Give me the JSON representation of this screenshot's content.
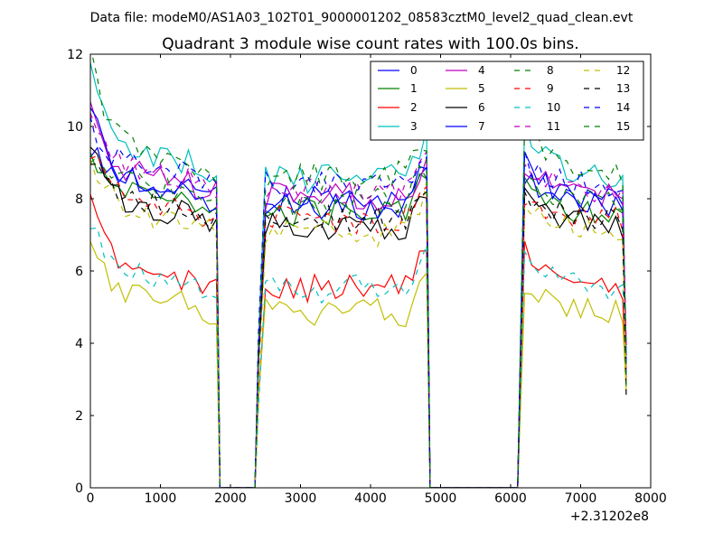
{
  "figure": {
    "suptitle": "Data file: modeM0/AS1A03_102T01_9000001202_08583cztM0_level2_quad_clean.evt"
  },
  "chart_data": {
    "type": "line",
    "title": "Quadrant 3 module wise count rates with 100.0s bins.",
    "xlabel": "",
    "ylabel": "",
    "xlim": [
      0,
      8000
    ],
    "ylim": [
      0,
      12
    ],
    "x_offset_label": "+2.31202e8",
    "xticks": [
      0,
      1000,
      2000,
      3000,
      4000,
      5000,
      6000,
      7000,
      8000
    ],
    "yticks": [
      0,
      2,
      4,
      6,
      8,
      10,
      12
    ],
    "legend_position": "top-right",
    "legend_columns": 4,
    "segments": [
      {
        "x": [
          0,
          100,
          200,
          300,
          400,
          500,
          600,
          700,
          800,
          900,
          1000,
          1100,
          1200,
          1300,
          1400,
          1500,
          1600,
          1700,
          1800,
          1850
        ]
      },
      {
        "x": [
          1850,
          2000,
          2100,
          2200,
          2300,
          2350
        ]
      },
      {
        "x": [
          2350,
          2400,
          2500,
          2600,
          2700,
          2800,
          2900,
          3000,
          3100,
          3200,
          3300,
          3400,
          3500,
          3600,
          3700,
          3800,
          3900,
          4000,
          4100,
          4200,
          4300,
          4400,
          4500,
          4600,
          4700,
          4800,
          4850
        ]
      },
      {
        "x": [
          4850,
          5000,
          5200,
          5400,
          5600,
          5800,
          6000,
          6100
        ]
      },
      {
        "x": [
          6100,
          6200,
          6300,
          6400,
          6500,
          6600,
          6700,
          6800,
          6900,
          7000,
          7100,
          7200,
          7300,
          7400,
          7500,
          7600,
          7650
        ]
      }
    ],
    "series": [
      {
        "name": "0",
        "color": "#0000ff",
        "dashed": false,
        "level": 8.4,
        "start": 9.5
      },
      {
        "name": "1",
        "color": "#008000",
        "dashed": false,
        "level": 8.0,
        "start": 9.4
      },
      {
        "name": "2",
        "color": "#ff0000",
        "dashed": false,
        "level": 5.8,
        "start": 7.9
      },
      {
        "name": "3",
        "color": "#00bfbf",
        "dashed": false,
        "level": 9.0,
        "start": 11.6
      },
      {
        "name": "4",
        "color": "#bf00bf",
        "dashed": false,
        "level": 8.5,
        "start": 10.4
      },
      {
        "name": "5",
        "color": "#bfbf00",
        "dashed": false,
        "level": 5.1,
        "start": 6.8
      },
      {
        "name": "6",
        "color": "#000000",
        "dashed": false,
        "level": 7.6,
        "start": 9.4
      },
      {
        "name": "7",
        "color": "#0000ff",
        "dashed": false,
        "level": 8.2,
        "start": 10.6
      },
      {
        "name": "8",
        "color": "#008000",
        "dashed": true,
        "level": 8.3,
        "start": 9.2
      },
      {
        "name": "9",
        "color": "#ff0000",
        "dashed": true,
        "level": 7.8,
        "start": 9.3
      },
      {
        "name": "10",
        "color": "#00bfbf",
        "dashed": true,
        "level": 5.8,
        "start": 7.5
      },
      {
        "name": "11",
        "color": "#bf00bf",
        "dashed": true,
        "level": 8.6,
        "start": 10.2
      },
      {
        "name": "12",
        "color": "#bfbf00",
        "dashed": true,
        "level": 7.4,
        "start": 9.2
      },
      {
        "name": "13",
        "color": "#000000",
        "dashed": true,
        "level": 7.8,
        "start": 9.0
      },
      {
        "name": "14",
        "color": "#0000ff",
        "dashed": true,
        "level": 8.8,
        "start": 10.1
      },
      {
        "name": "15",
        "color": "#008000",
        "dashed": true,
        "level": 9.1,
        "start": 11.9
      }
    ]
  }
}
